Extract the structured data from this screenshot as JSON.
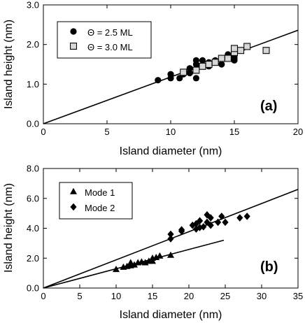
{
  "chart_data": [
    {
      "type": "scatter",
      "panel_label": "(a)",
      "xlabel": "Island diameter (nm)",
      "ylabel": "Island height (nm)",
      "xlim": [
        0,
        20
      ],
      "ylim": [
        0,
        3.0
      ],
      "x_ticks": [
        0,
        5,
        10,
        15,
        20
      ],
      "x_tick_labels": [
        "0",
        "5",
        "10",
        "15",
        "20"
      ],
      "y_ticks": [
        0,
        1,
        2,
        3
      ],
      "y_tick_labels": [
        "0.0",
        "1.0",
        "2.0",
        "3.0"
      ],
      "legend_position": "top-left",
      "series": [
        {
          "name": "Θ = 2.5 ML",
          "marker": "circle",
          "points": [
            [
              9.0,
              1.1
            ],
            [
              10.0,
              1.15
            ],
            [
              10.0,
              1.25
            ],
            [
              10.7,
              1.15
            ],
            [
              11.0,
              1.25
            ],
            [
              11.5,
              1.28
            ],
            [
              11.5,
              1.4
            ],
            [
              12.0,
              1.15
            ],
            [
              12.0,
              1.5
            ],
            [
              12.0,
              1.6
            ],
            [
              12.5,
              1.45
            ],
            [
              12.5,
              1.6
            ],
            [
              13.0,
              1.45
            ],
            [
              13.0,
              1.55
            ],
            [
              13.5,
              1.6
            ],
            [
              14.0,
              1.5
            ],
            [
              14.5,
              1.75
            ],
            [
              15.0,
              1.6
            ],
            [
              15.0,
              1.65
            ],
            [
              15.0,
              1.7
            ]
          ]
        },
        {
          "name": "Θ = 3.0 ML",
          "marker": "square",
          "points": [
            [
              11.0,
              1.3
            ],
            [
              12.0,
              1.35
            ],
            [
              12.5,
              1.45
            ],
            [
              13.0,
              1.5
            ],
            [
              13.5,
              1.55
            ],
            [
              14.0,
              1.65
            ],
            [
              14.5,
              1.65
            ],
            [
              15.0,
              1.8
            ],
            [
              15.0,
              1.9
            ],
            [
              15.5,
              1.85
            ],
            [
              16.0,
              1.95
            ],
            [
              17.5,
              1.85
            ]
          ]
        }
      ],
      "fit_lines": [
        {
          "x": [
            0,
            20
          ],
          "y": [
            0,
            2.36
          ]
        }
      ]
    },
    {
      "type": "scatter",
      "panel_label": "(b)",
      "xlabel": "Island diameter (nm)",
      "ylabel": "Island height (nm)",
      "xlim": [
        0,
        35
      ],
      "ylim": [
        0,
        8.0
      ],
      "x_ticks": [
        0,
        5,
        10,
        15,
        20,
        25,
        30,
        35
      ],
      "x_tick_labels": [
        "0",
        "5",
        "10",
        "15",
        "20",
        "25",
        "30",
        "35"
      ],
      "y_ticks": [
        0,
        2,
        4,
        6,
        8
      ],
      "y_tick_labels": [
        "0.0",
        "2.0",
        "4.0",
        "6.0",
        "8.0"
      ],
      "legend_position": "top-left",
      "series": [
        {
          "name": "Mode 1",
          "marker": "triangle",
          "points": [
            [
              10.0,
              1.25
            ],
            [
              11.0,
              1.4
            ],
            [
              11.5,
              1.45
            ],
            [
              12.0,
              1.5
            ],
            [
              12.0,
              1.7
            ],
            [
              12.5,
              1.55
            ],
            [
              13.0,
              1.7
            ],
            [
              13.5,
              1.75
            ],
            [
              14.0,
              1.7
            ],
            [
              14.5,
              1.8
            ],
            [
              15.0,
              1.8
            ],
            [
              15.0,
              2.0
            ],
            [
              15.5,
              2.05
            ],
            [
              16.0,
              2.15
            ],
            [
              17.5,
              2.2
            ]
          ]
        },
        {
          "name": "Mode 2",
          "marker": "diamond",
          "points": [
            [
              17.5,
              3.6
            ],
            [
              17.5,
              3.3
            ],
            [
              19.0,
              3.8
            ],
            [
              19.0,
              3.9
            ],
            [
              20.5,
              4.2
            ],
            [
              21.0,
              3.95
            ],
            [
              21.0,
              4.3
            ],
            [
              21.5,
              4.5
            ],
            [
              22.0,
              4.1
            ],
            [
              22.5,
              4.4
            ],
            [
              22.5,
              4.9
            ],
            [
              23.0,
              4.2
            ],
            [
              23.0,
              4.7
            ],
            [
              24.0,
              4.4
            ],
            [
              24.5,
              4.8
            ],
            [
              25.0,
              4.4
            ],
            [
              27.0,
              4.7
            ],
            [
              28.0,
              4.8
            ],
            [
              21.5,
              4.05
            ]
          ]
        }
      ],
      "fit_lines": [
        {
          "x": [
            0,
            35
          ],
          "y": [
            0,
            6.6
          ]
        },
        {
          "x": [
            0,
            24.8
          ],
          "y": [
            0,
            3.2
          ]
        }
      ]
    }
  ]
}
